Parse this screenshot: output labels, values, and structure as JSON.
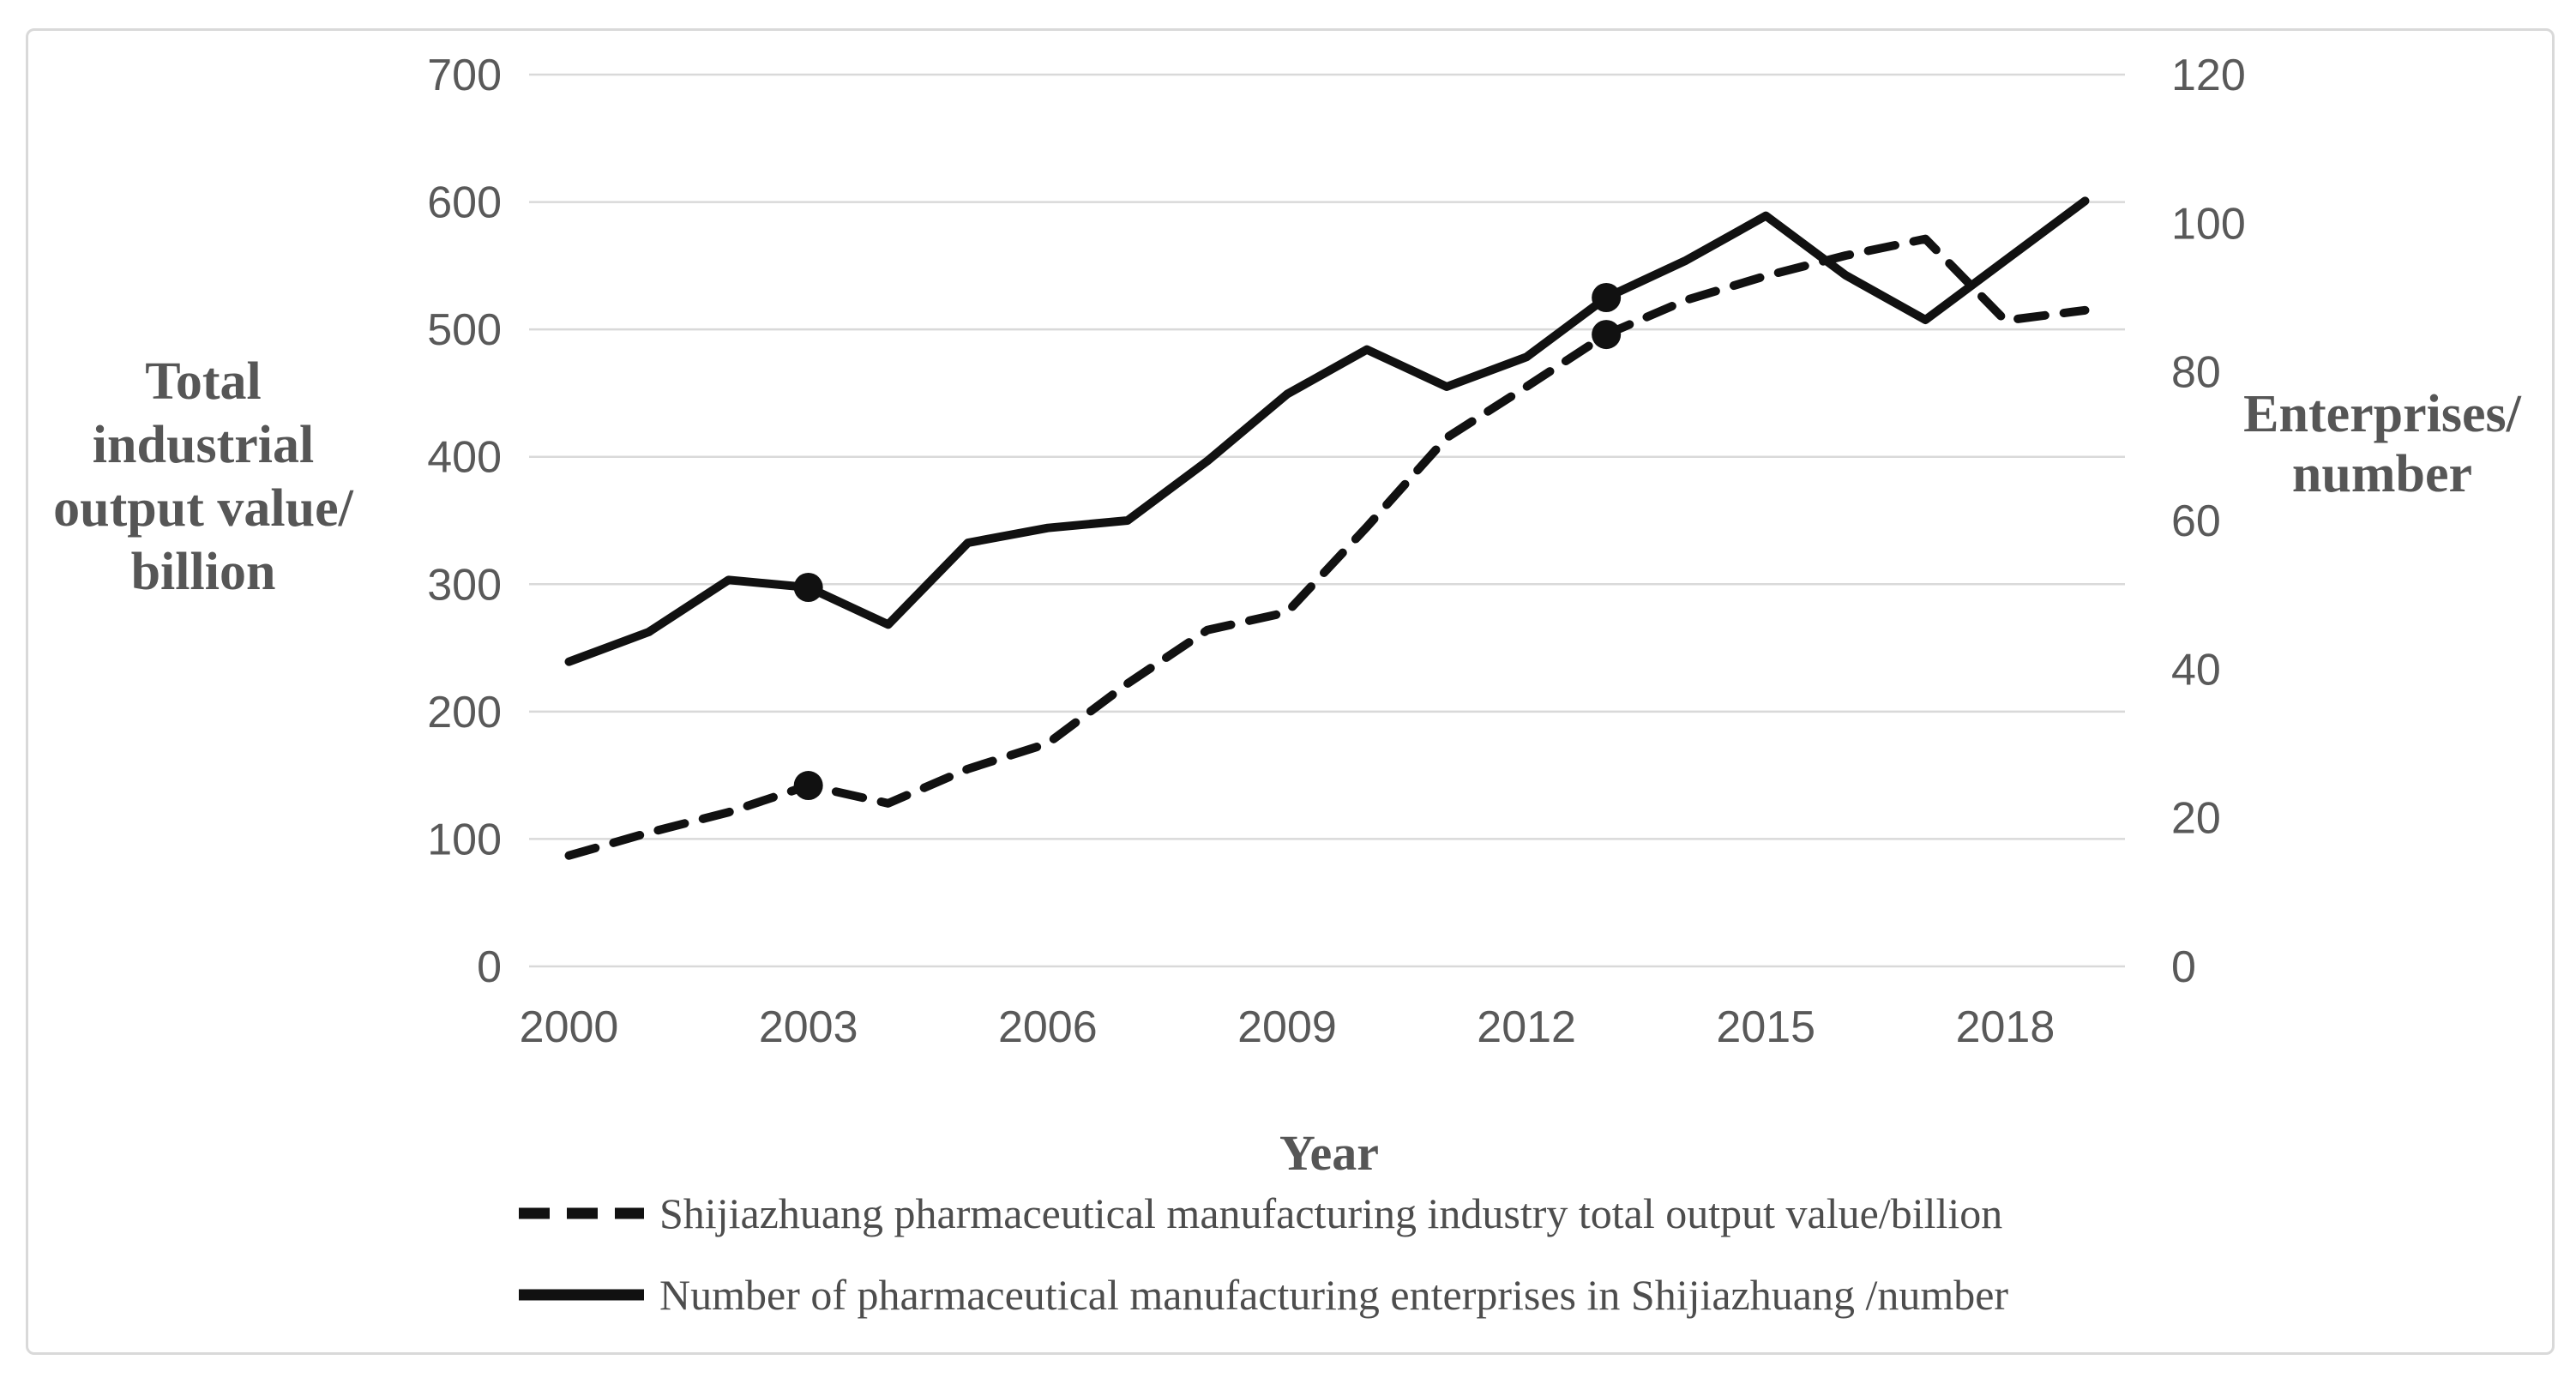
{
  "chart_data": {
    "type": "line",
    "x": [
      2000,
      2001,
      2002,
      2003,
      2004,
      2005,
      2006,
      2007,
      2008,
      2009,
      2010,
      2011,
      2012,
      2013,
      2014,
      2015,
      2016,
      2017,
      2018,
      2019
    ],
    "x_axis": {
      "title": "Year",
      "tick_years": [
        2000,
        2003,
        2006,
        2009,
        2012,
        2015,
        2018
      ]
    },
    "left_axis": {
      "title": "Total industrial output value/billion",
      "title_lines": [
        "Total industrial",
        "output value/",
        "billion"
      ],
      "min": 0,
      "max": 700,
      "ticks": [
        0,
        100,
        200,
        300,
        400,
        500,
        600,
        700
      ]
    },
    "right_axis": {
      "title": "Enterprises/number",
      "title_lines": [
        "Enterprises/",
        "number"
      ],
      "min": 0,
      "max": 120,
      "ticks": [
        0,
        20,
        40,
        60,
        80,
        100,
        120
      ]
    },
    "grid": "horizontal",
    "legend_position": "bottom",
    "series": [
      {
        "name": "Shijiazhuang pharmaceutical manufacturing industry total output value/billion",
        "axis": "left",
        "line_style": "dashed",
        "values": [
          87,
          105,
          121,
          142,
          128,
          155,
          175,
          222,
          264,
          278,
          345,
          415,
          455,
          496,
          523,
          542,
          558,
          571,
          507,
          515
        ],
        "marker_years": [
          2003,
          2013
        ]
      },
      {
        "name": "Number of pharmaceutical manufacturing enterprises in Shijiazhuang /number",
        "axis": "right",
        "line_style": "solid",
        "values": [
          41,
          45,
          52,
          51,
          46,
          57,
          59,
          60,
          68,
          77,
          83,
          78,
          82,
          90,
          95,
          101,
          93,
          87,
          95,
          103
        ],
        "marker_years": [
          2003,
          2013
        ]
      }
    ],
    "colors": {
      "line": "#111111",
      "grid": "#d9d9d9",
      "tick_text": "#595959",
      "title_text": "#565656"
    }
  }
}
